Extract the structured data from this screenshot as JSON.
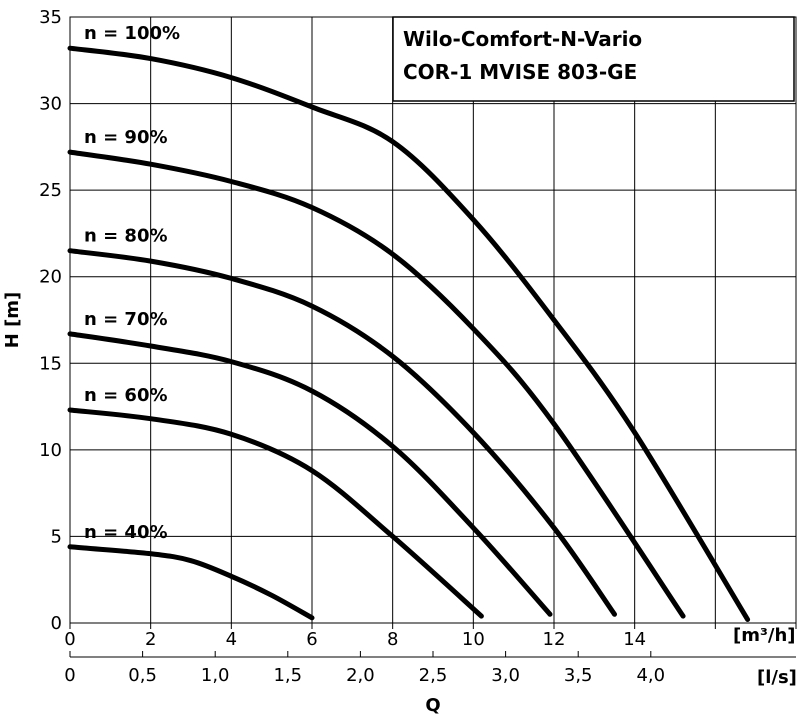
{
  "chart_data": {
    "type": "line",
    "title_lines": [
      "Wilo-Comfort-N-Vario",
      "COR-1 MVISE 803-GE"
    ],
    "xlabel": "Q",
    "ylabel": "H [m]",
    "x_unit_primary": "[m³/h]",
    "x_unit_secondary": "[l/s]",
    "xlim": [
      0,
      18
    ],
    "ylim": [
      0,
      35
    ],
    "x_ticks": [
      "0",
      "2",
      "4",
      "6",
      "8",
      "10",
      "12",
      "14"
    ],
    "x_tick_values": [
      0,
      2,
      4,
      6,
      8,
      10,
      12,
      14
    ],
    "secondary_ticks": [
      "0",
      "0,5",
      "1,0",
      "1,5",
      "2,0",
      "2,5",
      "3,0",
      "3,5",
      "4,0"
    ],
    "secondary_tick_values": [
      0,
      0.5,
      1.0,
      1.5,
      2.0,
      2.5,
      3.0,
      3.5,
      4.0
    ],
    "y_ticks": [
      "0",
      "5",
      "10",
      "15",
      "20",
      "25",
      "30",
      "35"
    ],
    "y_tick_values": [
      0,
      5,
      10,
      15,
      20,
      25,
      30,
      35
    ],
    "grid": true,
    "series": [
      {
        "name": "n = 100%",
        "x": [
          0,
          2,
          4,
          6,
          8,
          10,
          12,
          14,
          16.8
        ],
        "y": [
          33.2,
          32.6,
          31.5,
          29.8,
          27.8,
          23.3,
          17.5,
          11.0,
          0.2
        ]
      },
      {
        "name": "n = 90%",
        "x": [
          0,
          2,
          4,
          6,
          8,
          10,
          12,
          15.2
        ],
        "y": [
          27.2,
          26.5,
          25.5,
          24.0,
          21.3,
          17.0,
          11.5,
          0.4
        ]
      },
      {
        "name": "n = 80%",
        "x": [
          0,
          2,
          4,
          6,
          8,
          10,
          12,
          13.5
        ],
        "y": [
          21.5,
          20.9,
          19.9,
          18.3,
          15.4,
          11.0,
          5.5,
          0.5
        ]
      },
      {
        "name": "n = 70%",
        "x": [
          0,
          2,
          4,
          6,
          8,
          10,
          11.9
        ],
        "y": [
          16.7,
          16.0,
          15.1,
          13.4,
          10.2,
          5.5,
          0.5
        ]
      },
      {
        "name": "n = 60%",
        "x": [
          0,
          2,
          4,
          6,
          8,
          10.2
        ],
        "y": [
          12.3,
          11.8,
          10.9,
          8.8,
          5.0,
          0.4
        ]
      },
      {
        "name": "n = 40%",
        "x": [
          0,
          2,
          3,
          4,
          5,
          6
        ],
        "y": [
          4.4,
          4.0,
          3.6,
          2.7,
          1.6,
          0.3
        ]
      }
    ]
  }
}
